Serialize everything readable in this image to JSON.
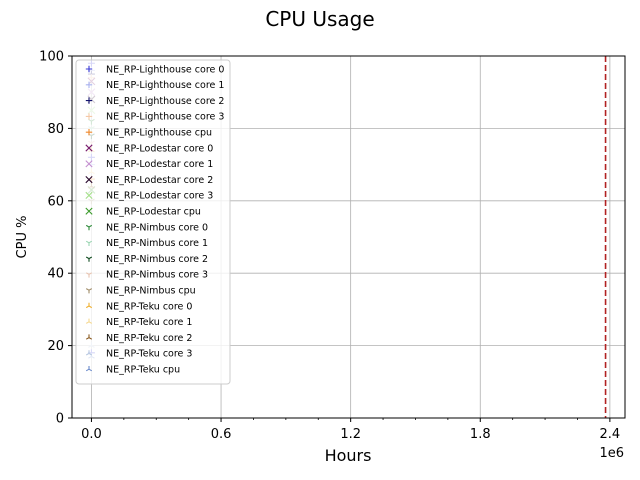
{
  "chart_data": {
    "type": "scatter",
    "title": "CPU Usage",
    "xlabel": "Hours",
    "ylabel": "CPU %",
    "x_offset_label": "1e6",
    "xlim": [
      -0.09,
      2.47
    ],
    "ylim": [
      0,
      100
    ],
    "x_ticks": [
      0.0,
      0.6,
      1.2,
      1.8,
      2.4
    ],
    "x_tick_labels": [
      "0.0",
      "0.6",
      "1.2",
      "1.8",
      "2.4"
    ],
    "y_ticks": [
      0,
      20,
      40,
      60,
      80,
      100
    ],
    "y_tick_labels": [
      "0",
      "20",
      "40",
      "60",
      "80",
      "100"
    ],
    "x_minor_step": 0.15,
    "grid": true,
    "legend_position": "upper-left",
    "vline": {
      "x": 2.38,
      "color": "#b22222",
      "style": "dashed"
    },
    "series": [
      {
        "name": "NE_RP-Lighthouse core 0",
        "marker": "+",
        "color": "#3a3ad6",
        "points": [
          [
            0.0,
            98
          ],
          [
            0.0,
            72
          ],
          [
            0.0,
            18
          ]
        ]
      },
      {
        "name": "NE_RP-Lighthouse core 1",
        "marker": "+",
        "color": "#aab4f0",
        "points": [
          [
            0.0,
            96
          ],
          [
            0.0,
            70
          ]
        ]
      },
      {
        "name": "NE_RP-Lighthouse core 2",
        "marker": "+",
        "color": "#14146e",
        "points": [
          [
            0.0,
            95
          ]
        ]
      },
      {
        "name": "NE_RP-Lighthouse core 3",
        "marker": "+",
        "color": "#f5c9a8",
        "points": [
          [
            0.0,
            94
          ]
        ]
      },
      {
        "name": "NE_RP-Lighthouse cpu",
        "marker": "+",
        "color": "#f0882a",
        "points": [
          [
            0.0,
            66
          ]
        ]
      },
      {
        "name": "NE_RP-Lodestar core 0",
        "marker": "x",
        "color": "#7a1f6e",
        "points": [
          [
            0.0,
            93
          ]
        ]
      },
      {
        "name": "NE_RP-Lodestar core 1",
        "marker": "x",
        "color": "#c48fcf",
        "points": [
          [
            0.0,
            90
          ]
        ]
      },
      {
        "name": "NE_RP-Lodestar core 2",
        "marker": "x",
        "color": "#2a0a2e",
        "points": [
          [
            0.0,
            88
          ]
        ]
      },
      {
        "name": "NE_RP-Lodestar core 3",
        "marker": "x",
        "color": "#a6e08c",
        "points": [
          [
            0.0,
            85
          ]
        ]
      },
      {
        "name": "NE_RP-Lodestar cpu",
        "marker": "x",
        "color": "#3a9a2a",
        "points": [
          [
            0.0,
            63
          ]
        ]
      },
      {
        "name": "NE_RP-Nimbus core 0",
        "marker": "tri_down",
        "color": "#2e8b3a",
        "points": [
          [
            0.0,
            82
          ]
        ]
      },
      {
        "name": "NE_RP-Nimbus core 1",
        "marker": "tri_down",
        "color": "#98d4b0",
        "points": [
          [
            0.0,
            80
          ]
        ]
      },
      {
        "name": "NE_RP-Nimbus core 2",
        "marker": "tri_down",
        "color": "#0e4a1e",
        "points": [
          [
            0.0,
            78
          ]
        ]
      },
      {
        "name": "NE_RP-Nimbus core 3",
        "marker": "tri_down",
        "color": "#e8c4b0",
        "points": [
          [
            0.0,
            76
          ]
        ]
      },
      {
        "name": "NE_RP-Nimbus cpu",
        "marker": "tri_down",
        "color": "#a08c68",
        "points": [
          [
            0.0,
            60
          ]
        ]
      },
      {
        "name": "NE_RP-Teku core 0",
        "marker": "tri_up",
        "color": "#f0b030",
        "points": [
          [
            0.0,
            74
          ]
        ]
      },
      {
        "name": "NE_RP-Teku core 1",
        "marker": "tri_up",
        "color": "#f5d890",
        "points": [
          [
            0.0,
            68
          ]
        ]
      },
      {
        "name": "NE_RP-Teku core 2",
        "marker": "tri_up",
        "color": "#8a5a20",
        "points": [
          [
            0.0,
            64
          ]
        ]
      },
      {
        "name": "NE_RP-Teku core 3",
        "marker": "tri_up",
        "color": "#b8c8e0",
        "points": [
          [
            0.0,
            20
          ]
        ]
      },
      {
        "name": "NE_RP-Teku cpu",
        "marker": "tri_up",
        "color": "#6a8acb",
        "points": [
          [
            0.0,
            17
          ]
        ]
      }
    ]
  }
}
